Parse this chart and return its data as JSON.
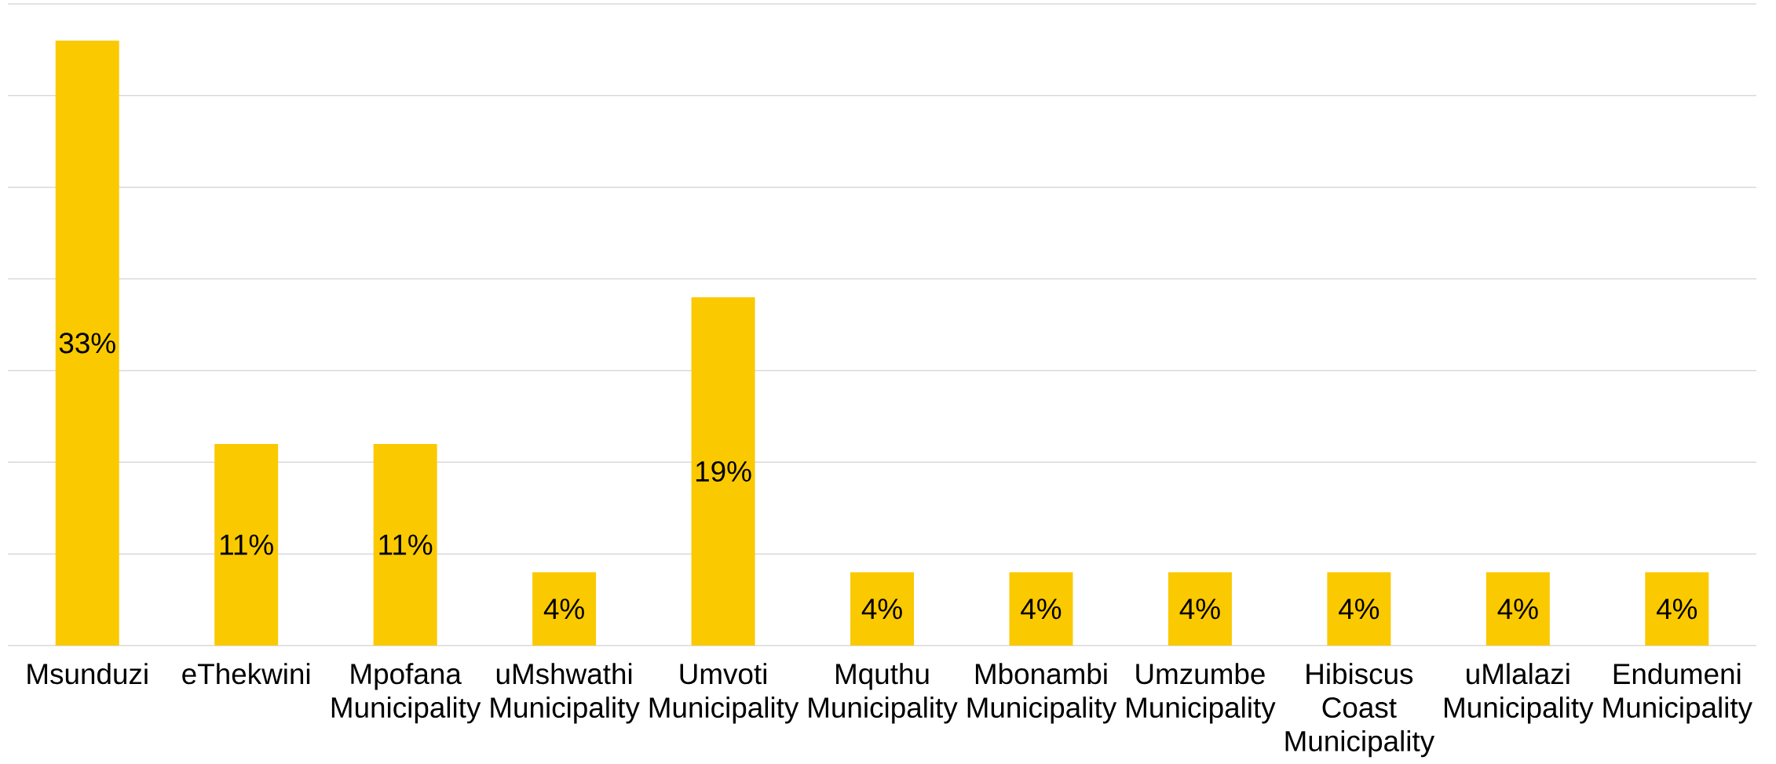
{
  "chart_data": {
    "type": "bar",
    "categories": [
      "Msunduzi",
      "eThekwini",
      "Mpofana Municipality",
      "uMshwathi Municipality",
      "Umvoti Municipality",
      "Mquthu Municipality",
      "Mbonambi Municipality",
      "Umzumbe Municipality",
      "Hibiscus Coast Municipality",
      "uMlalazi Municipality",
      "Endumeni Municipality"
    ],
    "values": [
      33,
      11,
      11,
      4,
      19,
      4,
      4,
      4,
      4,
      4,
      4
    ],
    "value_labels": [
      "33%",
      "11%",
      "11%",
      "4%",
      "19%",
      "4%",
      "4%",
      "4%",
      "4%",
      "4%",
      "4%"
    ],
    "color": "#fac900",
    "ylim": [
      0,
      35
    ],
    "yticks": [
      0,
      5,
      10,
      15,
      20,
      25,
      30,
      35
    ],
    "grid": "y",
    "tick_labels": "x"
  }
}
